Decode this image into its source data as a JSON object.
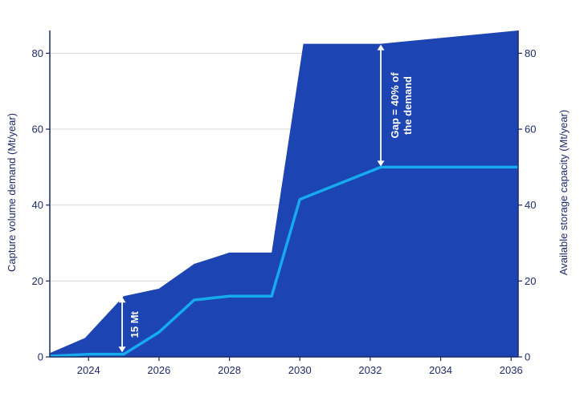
{
  "colors": {
    "area": "#1c44b2",
    "line": "#16aaee",
    "grid": "#d9d9d9",
    "axis": "#1c2a66",
    "text": "#1f2a6b",
    "annotation": "#ffffff"
  },
  "chart_data": {
    "type": "area",
    "ylabel_left": "Capture volume demand (Mt/year)",
    "ylabel_right": "Available storage capacity (Mt/year)",
    "xlim": [
      2022.9,
      2036.2
    ],
    "ylim": [
      0,
      86
    ],
    "x_ticks": [
      2024,
      2026,
      2028,
      2030,
      2032,
      2034,
      2036
    ],
    "y_ticks": [
      0,
      20,
      40,
      60,
      80
    ],
    "grid": true,
    "series": [
      {
        "role": "area",
        "x": [
          2022.9,
          2023.9,
          2025.0,
          2026.0,
          2027.0,
          2028.0,
          2029.2,
          2030.1,
          2032.3,
          2036.2
        ],
        "values": [
          1,
          5,
          16,
          18,
          24.5,
          27.5,
          27.5,
          82.5,
          82.5,
          86
        ]
      },
      {
        "role": "line",
        "x": [
          2022.9,
          2024.0,
          2025.0,
          2026.0,
          2027.0,
          2028.0,
          2029.2,
          2030.0,
          2032.3,
          2036.2
        ],
        "values": [
          0.2,
          0.7,
          0.7,
          6.5,
          15,
          16,
          16,
          41.5,
          50,
          50
        ]
      }
    ],
    "annotations": [
      {
        "text": "15 Mt",
        "x": 2025.0,
        "from": 1,
        "to": 16
      },
      {
        "text_line1": "Gap = 40% of",
        "text_line2": "the demand",
        "x": 2032.3,
        "from": 50,
        "to": 82.5
      }
    ]
  }
}
